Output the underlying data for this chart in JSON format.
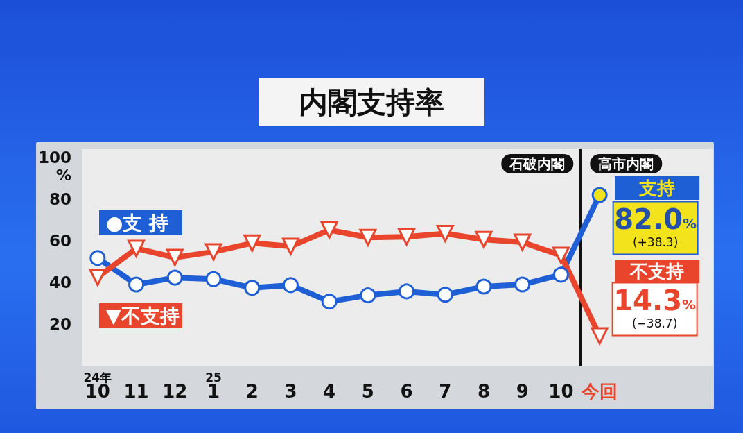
{
  "chart_data": {
    "type": "line",
    "title": "内閣支持率",
    "ylabel": "%",
    "categories": [
      "10",
      "11",
      "12",
      "1",
      "2",
      "3",
      "4",
      "5",
      "6",
      "7",
      "8",
      "9",
      "10",
      "今回"
    ],
    "series": [
      {
        "name": "●支 持",
        "color": "#1f5fd6",
        "marker": "circle",
        "values": [
          51.7,
          39.0,
          42.3,
          41.6,
          37.4,
          38.7,
          30.8,
          33.8,
          35.7,
          34.1,
          38.0,
          39.0,
          43.7,
          82.0
        ],
        "value_labels": [
          null,
          null,
          null,
          null,
          null,
          null,
          null,
          null,
          null,
          null,
          null,
          null,
          null,
          "82.0%\n(+38.3)"
        ]
      },
      {
        "name": "▼不支持",
        "color": "#e8452c",
        "marker": "triangle",
        "values": [
          42.5,
          56.3,
          52.0,
          54.7,
          58.9,
          57.3,
          65.2,
          61.6,
          61.9,
          63.5,
          60.6,
          59.3,
          53.0,
          14.3
        ],
        "value_labels": [
          null,
          null,
          null,
          null,
          null,
          null,
          null,
          null,
          null,
          null,
          null,
          null,
          null,
          "14.3%\n(−38.7)"
        ]
      }
    ],
    "ylim": [
      0,
      104
    ],
    "yticks": [
      20,
      40,
      60,
      80,
      100
    ],
    "grid": false,
    "legend": "left",
    "annotations": [
      "24年",
      "25",
      "石破内閣",
      "高市内閣",
      "支持",
      "不支持"
    ]
  }
}
